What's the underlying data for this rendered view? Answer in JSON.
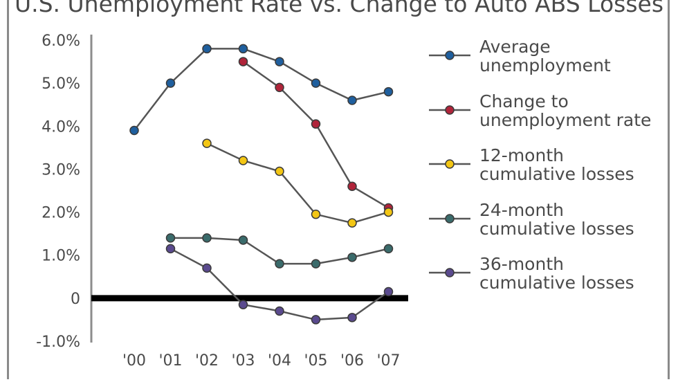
{
  "chart_data": {
    "type": "line",
    "title": "U.S. Unemployment Rate vs. Change to Auto ABS Losses",
    "categories": [
      "'00",
      "'01",
      "'02",
      "'03",
      "'04",
      "'05",
      "'06",
      "'07"
    ],
    "ylim": [
      -1.0,
      6.0
    ],
    "yticks": [
      {
        "value": 6.0,
        "label": "6.0%"
      },
      {
        "value": 5.0,
        "label": "5.0%"
      },
      {
        "value": 4.0,
        "label": "4.0%"
      },
      {
        "value": 3.0,
        "label": "3.0%"
      },
      {
        "value": 2.0,
        "label": "2.0%"
      },
      {
        "value": 1.0,
        "label": "1.0%"
      },
      {
        "value": 0,
        "label": "0"
      },
      {
        "value": -1.0,
        "label": "-1.0%"
      }
    ],
    "grid": false,
    "legend_position": "right",
    "series": [
      {
        "name": "Average unemployment",
        "legend_lines": [
          "Average",
          "unemployment"
        ],
        "color": "#1f5f9e",
        "values": [
          3.9,
          5.0,
          5.8,
          5.8,
          5.5,
          5.0,
          4.6,
          4.8
        ]
      },
      {
        "name": "Change to unemployment rate",
        "legend_lines": [
          "Change to",
          "unemployment rate"
        ],
        "color": "#b0243a",
        "values": [
          null,
          null,
          null,
          5.5,
          4.9,
          4.05,
          2.6,
          2.1
        ]
      },
      {
        "name": "12-month cumulative losses",
        "legend_lines": [
          "12-month",
          "cumulative losses"
        ],
        "color": "#f3c614",
        "values": [
          null,
          null,
          3.6,
          3.2,
          2.95,
          1.95,
          1.75,
          2.0
        ]
      },
      {
        "name": "24-month cumulative losses",
        "legend_lines": [
          "24-month",
          "cumulative losses"
        ],
        "color": "#3a6b6b",
        "values": [
          null,
          1.4,
          1.4,
          1.35,
          0.8,
          0.8,
          0.95,
          1.15
        ]
      },
      {
        "name": "36-month cumulative losses",
        "legend_lines": [
          "36-month",
          "cumulative losses"
        ],
        "color": "#5a4a8e",
        "values": [
          null,
          1.15,
          0.7,
          -0.15,
          -0.3,
          -0.5,
          -0.45,
          0.15
        ]
      }
    ]
  }
}
